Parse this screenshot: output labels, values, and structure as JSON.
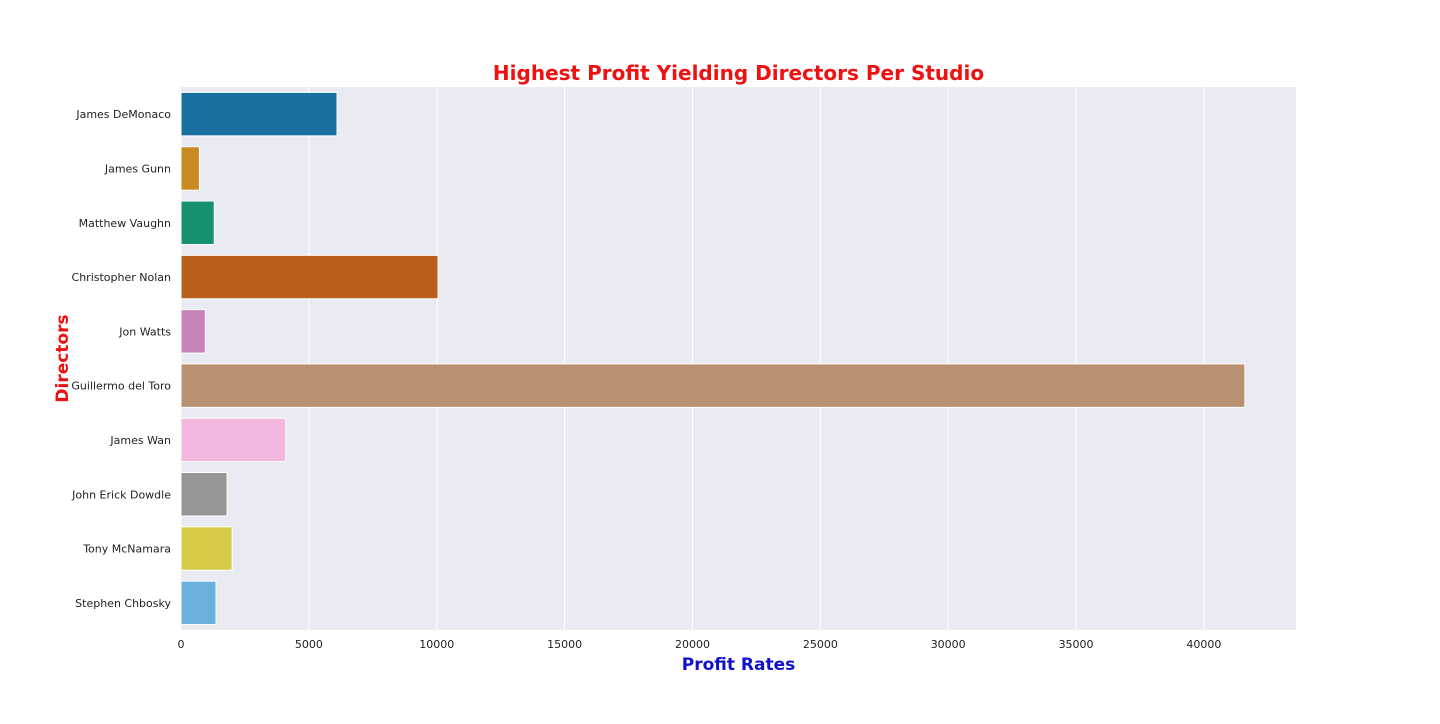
{
  "chart_data": {
    "type": "bar",
    "orientation": "horizontal",
    "title": "Highest Profit Yielding Directors Per Studio",
    "xlabel": "Profit Rates",
    "ylabel": "Directors",
    "categories": [
      "James DeMonaco",
      "James Gunn",
      "Matthew Vaughn",
      "Christopher Nolan",
      "Jon Watts",
      "Guillermo del Toro",
      "James Wan",
      "John Erick Dowdle",
      "Tony McNamara",
      "Stephen Chbosky"
    ],
    "values": [
      6100,
      720,
      1300,
      10050,
      950,
      41600,
      4100,
      1800,
      2000,
      1370
    ],
    "bar_colors": [
      "#1a6fa1",
      "#c88b22",
      "#15916f",
      "#b9611c",
      "#c683b7",
      "#ba9170",
      "#f2b8e0",
      "#969696",
      "#d6cc4a",
      "#6ab2db"
    ],
    "xlim": [
      0,
      43600
    ],
    "xticks": [
      0,
      5000,
      10000,
      15000,
      20000,
      25000,
      30000,
      35000,
      40000
    ],
    "xtick_labels": [
      "0",
      "5000",
      "10000",
      "15000",
      "20000",
      "25000",
      "30000",
      "35000",
      "40000"
    ],
    "grid": true,
    "background_color": "#eaeaf2",
    "grid_color": "#ffffff",
    "title_color": "#ee1111",
    "xlabel_color": "#1111cc",
    "ylabel_color": "#ee1111"
  }
}
